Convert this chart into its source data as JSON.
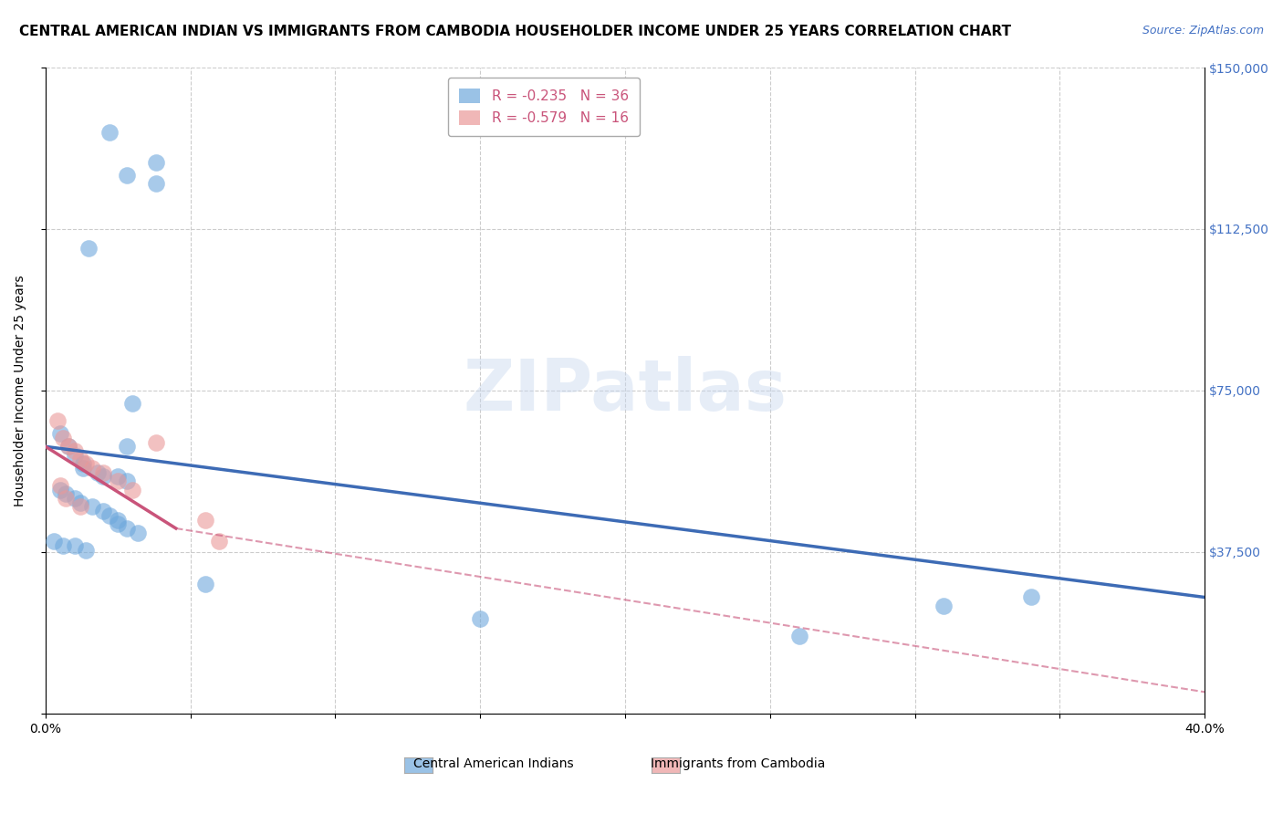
{
  "title": "CENTRAL AMERICAN INDIAN VS IMMIGRANTS FROM CAMBODIA HOUSEHOLDER INCOME UNDER 25 YEARS CORRELATION CHART",
  "source": "Source: ZipAtlas.com",
  "ylabel": "Householder Income Under 25 years",
  "xlim": [
    0.0,
    0.4
  ],
  "ylim": [
    0,
    150000
  ],
  "yticks": [
    0,
    37500,
    75000,
    112500,
    150000
  ],
  "ytick_labels": [
    "",
    "$37,500",
    "$75,000",
    "$112,500",
    "$150,000"
  ],
  "xtick_positions": [
    0.0,
    0.05,
    0.1,
    0.15,
    0.2,
    0.25,
    0.3,
    0.35,
    0.4
  ],
  "xtick_labels": [
    "0.0%",
    "",
    "",
    "",
    "",
    "",
    "",
    "",
    "40.0%"
  ],
  "watermark": "ZIPatlas",
  "blue_R": "-0.235",
  "blue_N": "36",
  "pink_R": "-0.579",
  "pink_N": "16",
  "blue_scatter_x": [
    0.022,
    0.038,
    0.028,
    0.038,
    0.015,
    0.005,
    0.008,
    0.01,
    0.013,
    0.013,
    0.018,
    0.02,
    0.025,
    0.028,
    0.03,
    0.005,
    0.007,
    0.01,
    0.012,
    0.016,
    0.02,
    0.022,
    0.025,
    0.025,
    0.028,
    0.032,
    0.003,
    0.006,
    0.01,
    0.014,
    0.055,
    0.15,
    0.26,
    0.31,
    0.34,
    0.028
  ],
  "blue_scatter_y": [
    135000,
    128000,
    125000,
    123000,
    108000,
    65000,
    62000,
    60000,
    58000,
    57000,
    56000,
    55000,
    55000,
    54000,
    72000,
    52000,
    51000,
    50000,
    49000,
    48000,
    47000,
    46000,
    45000,
    44000,
    43000,
    42000,
    40000,
    39000,
    39000,
    38000,
    30000,
    22000,
    18000,
    25000,
    27000,
    62000
  ],
  "pink_scatter_x": [
    0.004,
    0.006,
    0.008,
    0.01,
    0.012,
    0.014,
    0.016,
    0.02,
    0.025,
    0.03,
    0.038,
    0.06,
    0.055,
    0.005,
    0.007,
    0.012
  ],
  "pink_scatter_y": [
    68000,
    64000,
    62000,
    61000,
    59000,
    58000,
    57000,
    56000,
    54000,
    52000,
    63000,
    40000,
    45000,
    53000,
    50000,
    48000
  ],
  "blue_line_x": [
    0.0,
    0.4
  ],
  "blue_line_y": [
    62000,
    27000
  ],
  "pink_solid_line_x": [
    0.0,
    0.045
  ],
  "pink_solid_line_y": [
    62000,
    43000
  ],
  "pink_dashed_line_x": [
    0.045,
    0.4
  ],
  "pink_dashed_line_y": [
    43000,
    5000
  ],
  "grid_color": "#cccccc",
  "blue_color": "#6fa8dc",
  "pink_color": "#ea9999",
  "blue_line_color": "#3d6bb5",
  "pink_line_color": "#c9547a",
  "title_fontsize": 11,
  "axis_label_fontsize": 10,
  "tick_label_fontsize": 10,
  "legend_fontsize": 11,
  "background_color": "#ffffff",
  "watermark_color": "#c8d8ef",
  "blue_legend_label": "Central American Indians",
  "pink_legend_label": "Immigrants from Cambodia"
}
